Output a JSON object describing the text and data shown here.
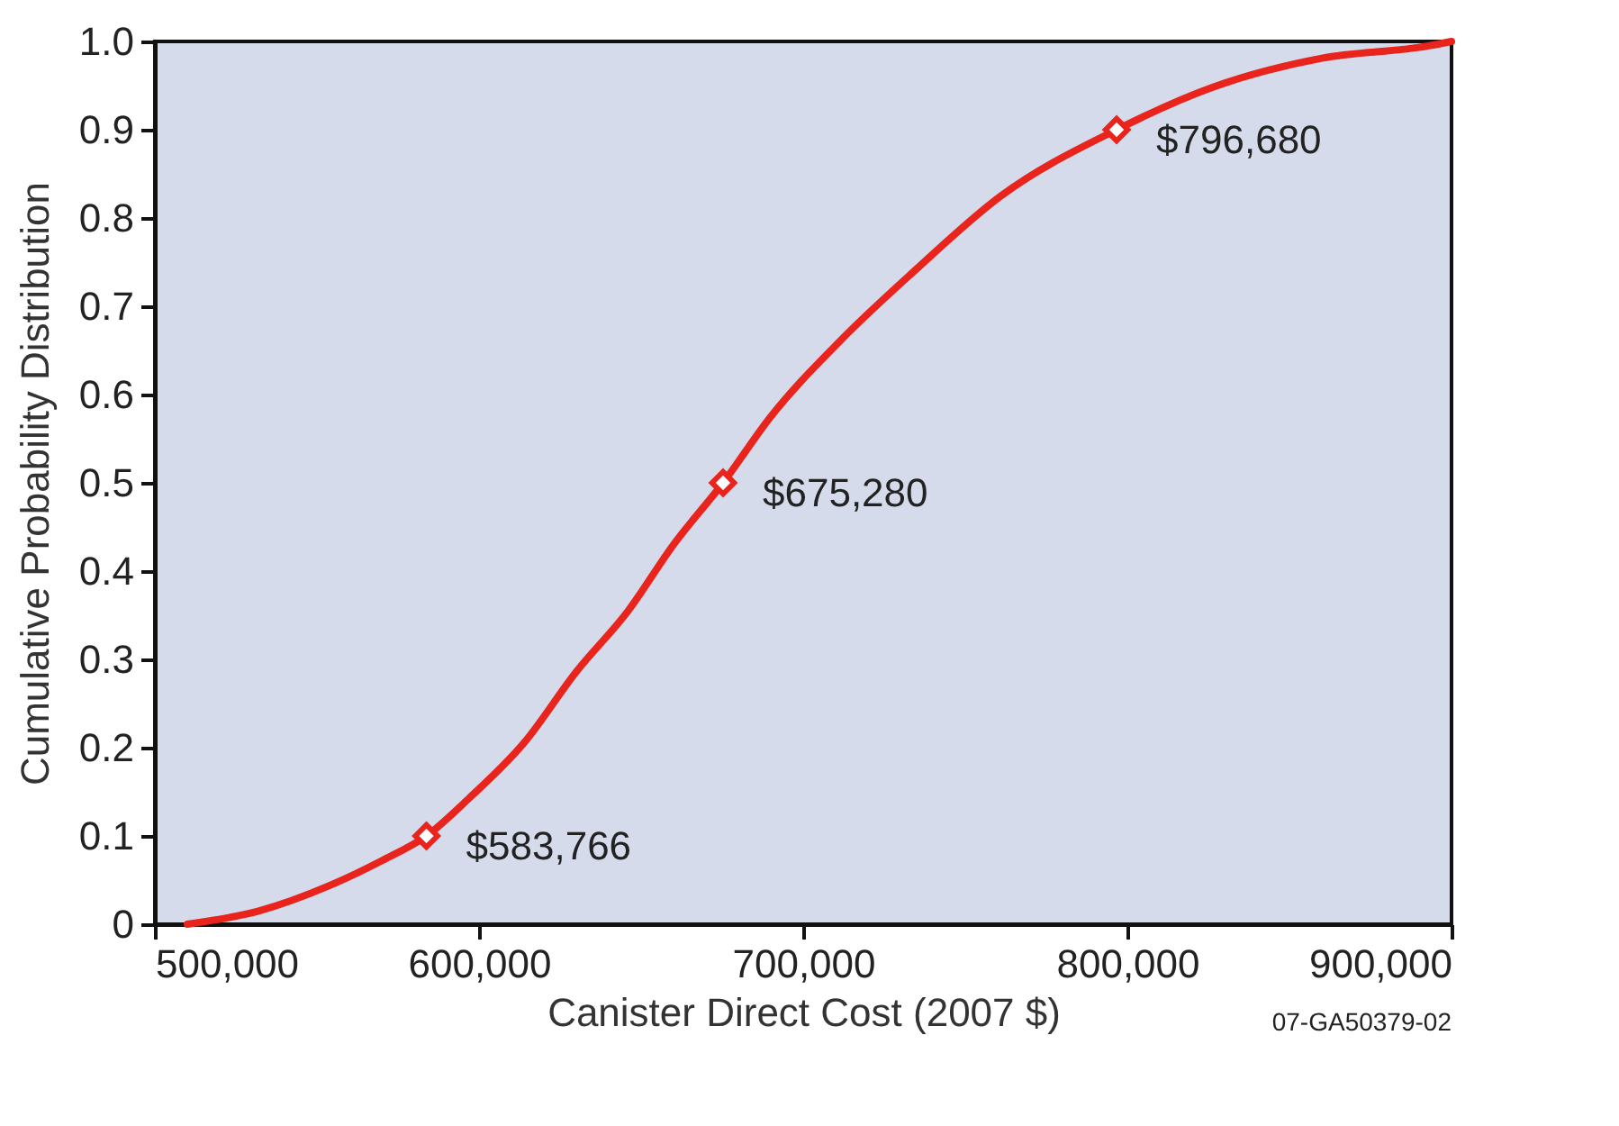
{
  "chart_data": {
    "type": "line",
    "xlabel": "Canister Direct Cost (2007 $)",
    "ylabel": "Cumulative Probability Distribution",
    "xlim": [
      500000,
      900000
    ],
    "xticks": [
      {
        "value": 500000,
        "label": "500,000"
      },
      {
        "value": 600000,
        "label": "600,000"
      },
      {
        "value": 700000,
        "label": "700,000"
      },
      {
        "value": 800000,
        "label": "800,000"
      },
      {
        "value": 900000,
        "label": "900,000"
      }
    ],
    "ylim": [
      0,
      1
    ],
    "yticks": [
      0,
      0.1,
      0.2,
      0.3,
      0.4,
      0.5,
      0.6,
      0.7,
      0.8,
      0.9,
      {
        "value": 1,
        "label": "1.0"
      }
    ],
    "grid": false,
    "line_style": "solid",
    "marker": "none",
    "series": [
      {
        "color": "#e8241c",
        "x": [
          510000,
          532000,
          554000,
          570000,
          583766,
          597000,
          614000,
          630000,
          646000,
          660000,
          675280,
          690000,
          712000,
          734000,
          761000,
          796680,
          827000,
          860000,
          893000,
          900000
        ],
        "values": [
          0,
          0.015,
          0.044,
          0.072,
          0.1,
          0.143,
          0.206,
          0.286,
          0.355,
          0.43,
          0.5,
          0.575,
          0.663,
          0.739,
          0.825,
          0.9,
          0.949,
          0.981,
          0.995,
          1.0
        ]
      },
      {
        "type": "scatter",
        "marker": "diamond",
        "color": "#e8241c",
        "x": [
          583766,
          675280,
          796680
        ],
        "values": [
          0.1,
          0.5,
          0.9
        ]
      }
    ],
    "annotations": [
      {
        "text": "$583,766",
        "x": 583766,
        "y": 0.1
      },
      {
        "text": "$675,280",
        "x": 675280,
        "y": 0.5
      },
      {
        "text": "$796,680",
        "x": 796680,
        "y": 0.9
      },
      "07-GA50379-02"
    ]
  }
}
